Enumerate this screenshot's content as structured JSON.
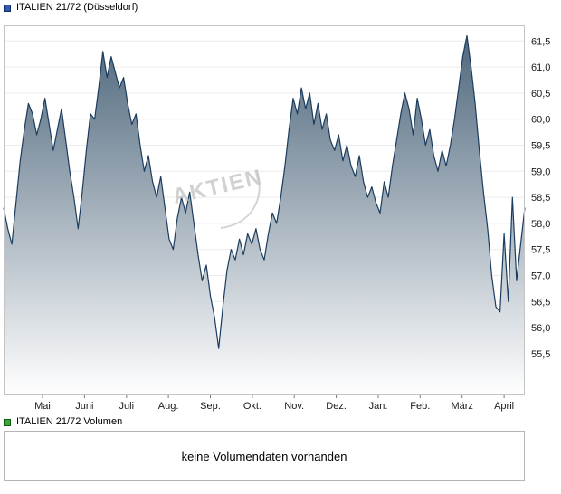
{
  "price_section": {
    "legend_label": "ITALIEN 21/72 (Düsseldorf)",
    "watermark": "AKTIEN"
  },
  "volume_section": {
    "legend_label": "ITALIEN 21/72 Volumen",
    "message": "keine Volumendaten vorhanden"
  },
  "colors": {
    "price_marker": "#2d59b8",
    "price_marker_border": "#16295c",
    "volume_marker": "#33ad33",
    "volume_marker_border": "#135813",
    "line": "#1c3c5e",
    "area_top": "#4a6379",
    "area_bottom": "#ffffff",
    "grid": "#ececec",
    "plot_border": "#c4c4c4",
    "tick_text": "#1a1a1a",
    "watermark": "#c6c6c6",
    "swoosh": "#d4d4d4"
  },
  "chart_data": [
    {
      "type": "area",
      "title": "ITALIEN 21/72 (Düsseldorf)",
      "xlabel": "",
      "ylabel": "",
      "grid": true,
      "legend_position": "top-left",
      "x_tick_labels": [
        "Mai",
        "Juni",
        "Juli",
        "Aug.",
        "Sep.",
        "Okt.",
        "Nov.",
        "Dez.",
        "Jan.",
        "Feb.",
        "März",
        "April"
      ],
      "y_tick_values": [
        61.5,
        61.0,
        60.5,
        60.0,
        59.5,
        59.0,
        58.5,
        58.0,
        57.5,
        57.0,
        56.5,
        56.0,
        55.5
      ],
      "y_tick_labels": [
        "61,5",
        "61,0",
        "60,5",
        "60,0",
        "59,5",
        "59,0",
        "58,5",
        "58,0",
        "57,5",
        "57,0",
        "56,5",
        "56,0",
        "55,5"
      ],
      "ylim": [
        54.7,
        61.8
      ],
      "series": [
        {
          "name": "ITALIEN 21/72 (Düsseldorf)",
          "values": [
            58.3,
            57.9,
            57.6,
            58.4,
            59.2,
            59.8,
            60.3,
            60.1,
            59.7,
            60.0,
            60.4,
            59.9,
            59.4,
            59.8,
            60.2,
            59.6,
            59.0,
            58.5,
            57.9,
            58.6,
            59.4,
            60.1,
            60.0,
            60.6,
            61.3,
            60.8,
            61.2,
            60.9,
            60.6,
            60.8,
            60.3,
            59.9,
            60.1,
            59.5,
            59.0,
            59.3,
            58.8,
            58.5,
            58.9,
            58.3,
            57.7,
            57.5,
            58.1,
            58.5,
            58.2,
            58.6,
            58.0,
            57.4,
            56.9,
            57.2,
            56.6,
            56.2,
            55.6,
            56.4,
            57.1,
            57.5,
            57.3,
            57.7,
            57.4,
            57.8,
            57.6,
            57.9,
            57.5,
            57.3,
            57.8,
            58.2,
            58.0,
            58.5,
            59.1,
            59.8,
            60.4,
            60.1,
            60.6,
            60.2,
            60.5,
            59.9,
            60.3,
            59.8,
            60.1,
            59.6,
            59.4,
            59.7,
            59.2,
            59.5,
            59.1,
            58.9,
            59.3,
            58.8,
            58.5,
            58.7,
            58.4,
            58.2,
            58.8,
            58.5,
            59.1,
            59.6,
            60.1,
            60.5,
            60.2,
            59.7,
            60.4,
            60.0,
            59.5,
            59.8,
            59.3,
            59.0,
            59.4,
            59.1,
            59.5,
            60.0,
            60.6,
            61.2,
            61.6,
            61.0,
            60.3,
            59.4,
            58.6,
            57.9,
            57.0,
            56.4,
            56.3,
            57.8,
            56.5,
            58.5,
            56.9,
            57.6,
            58.3
          ]
        }
      ]
    },
    {
      "type": "bar",
      "title": "ITALIEN 21/72 Volumen",
      "series": [],
      "note": "keine Volumendaten vorhanden"
    }
  ]
}
